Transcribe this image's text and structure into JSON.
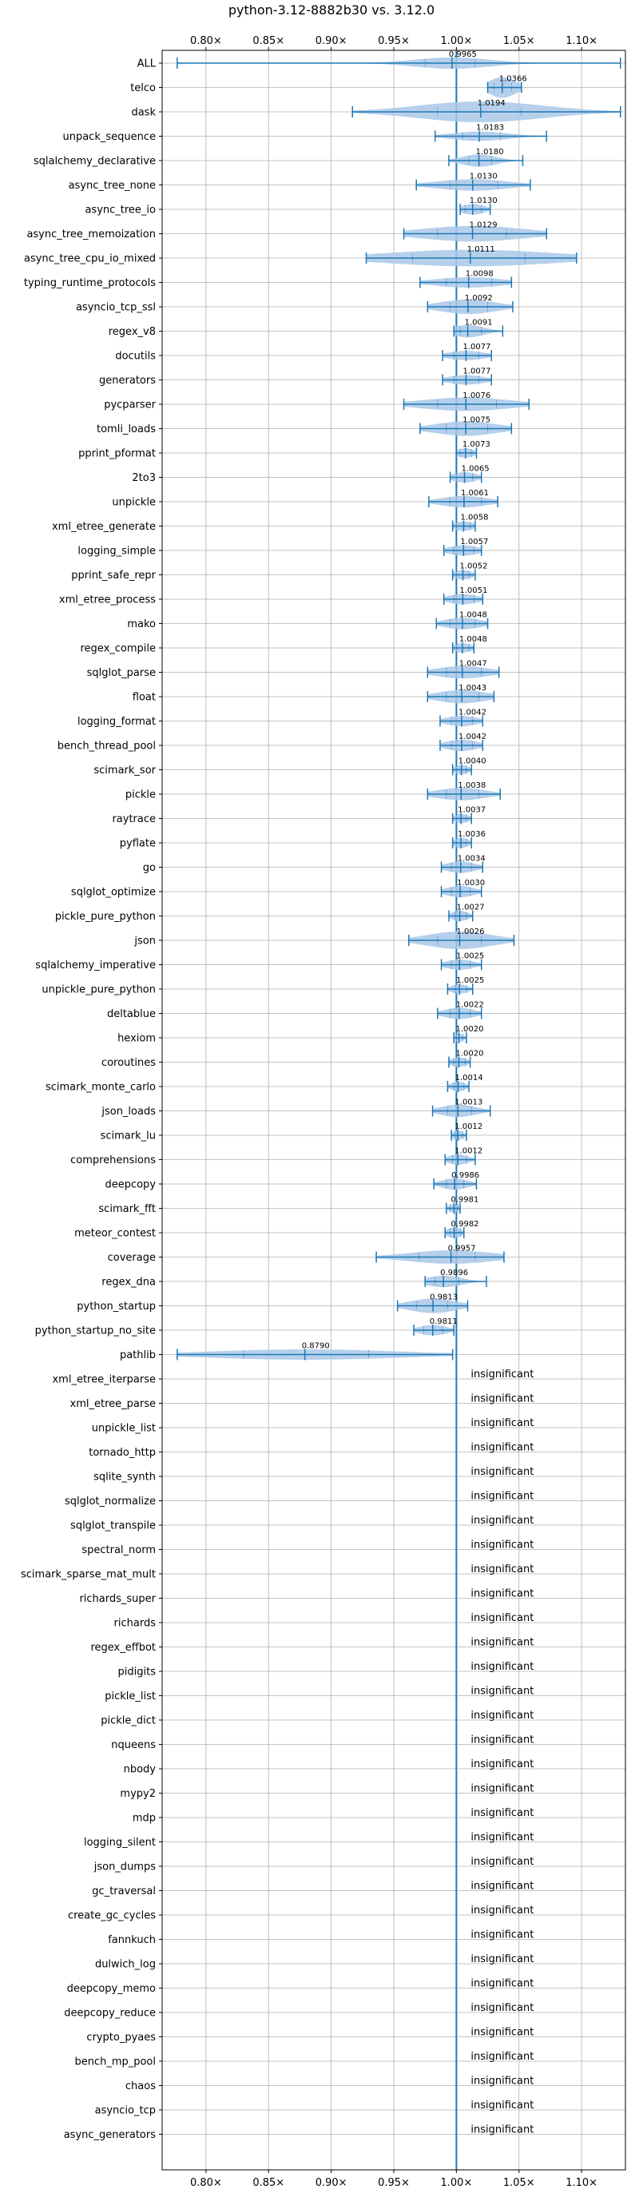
{
  "chart_data": {
    "type": "violin",
    "title": "python-3.12-8882b30 vs. 3.12.0",
    "xlim": [
      0.765,
      1.135
    ],
    "xticks": [
      0.8,
      0.85,
      0.9,
      0.95,
      1.0,
      1.05,
      1.1
    ],
    "xtick_labels": [
      "0.80×",
      "0.85×",
      "0.90×",
      "0.95×",
      "1.00×",
      "1.05×",
      "1.10×"
    ],
    "reference_line": 1.0,
    "grid": true,
    "color": "#1f77b4",
    "fill_color": "#a9c8e8",
    "insignificant_label": "insignificant",
    "significant": [
      {
        "name": "ALL",
        "label": "0.9965",
        "median": 0.9965,
        "min": 0.777,
        "max": 1.131,
        "q1": 0.975,
        "q3": 1.015,
        "width": 0.55
      },
      {
        "name": "telco",
        "label": "1.0366",
        "median": 1.0366,
        "min": 1.025,
        "max": 1.052,
        "q1": 1.03,
        "q3": 1.044,
        "width": 1.0
      },
      {
        "name": "dask",
        "label": "1.0194",
        "median": 1.0194,
        "min": 0.917,
        "max": 1.131,
        "q1": 0.985,
        "q3": 1.052,
        "width": 1.0
      },
      {
        "name": "unpack_sequence",
        "label": "1.0183",
        "median": 1.0183,
        "min": 0.983,
        "max": 1.072,
        "q1": 1.005,
        "q3": 1.035,
        "width": 0.45
      },
      {
        "name": "sqlalchemy_declarative",
        "label": "1.0180",
        "median": 1.018,
        "min": 0.994,
        "max": 1.053,
        "q1": 1.01,
        "q3": 1.028,
        "width": 0.6
      },
      {
        "name": "async_tree_none",
        "label": "1.0130",
        "median": 1.013,
        "min": 0.968,
        "max": 1.059,
        "q1": 0.995,
        "q3": 1.033,
        "width": 0.55
      },
      {
        "name": "async_tree_io",
        "label": "1.0130",
        "median": 1.013,
        "min": 1.003,
        "max": 1.027,
        "q1": 1.007,
        "q3": 1.02,
        "width": 0.5
      },
      {
        "name": "async_tree_memoization",
        "label": "1.0129",
        "median": 1.0129,
        "min": 0.958,
        "max": 1.072,
        "q1": 0.985,
        "q3": 1.04,
        "width": 0.75
      },
      {
        "name": "async_tree_cpu_io_mixed",
        "label": "1.0111",
        "median": 1.0111,
        "min": 0.928,
        "max": 1.096,
        "q1": 0.965,
        "q3": 1.055,
        "width": 0.8
      },
      {
        "name": "typing_runtime_protocols",
        "label": "1.0098",
        "median": 1.0098,
        "min": 0.971,
        "max": 1.044,
        "q1": 0.992,
        "q3": 1.028,
        "width": 0.5
      },
      {
        "name": "asyncio_tcp_ssl",
        "label": "1.0092",
        "median": 1.0092,
        "min": 0.977,
        "max": 1.045,
        "q1": 0.995,
        "q3": 1.025,
        "width": 0.7
      },
      {
        "name": "regex_v8",
        "label": "1.0091",
        "median": 1.0091,
        "min": 0.998,
        "max": 1.037,
        "q1": 1.003,
        "q3": 1.02,
        "width": 0.6
      },
      {
        "name": "docutils",
        "label": "1.0077",
        "median": 1.0077,
        "min": 0.989,
        "max": 1.028,
        "q1": 0.998,
        "q3": 1.018,
        "width": 0.45
      },
      {
        "name": "generators",
        "label": "1.0077",
        "median": 1.0077,
        "min": 0.989,
        "max": 1.028,
        "q1": 0.998,
        "q3": 1.018,
        "width": 0.45
      },
      {
        "name": "pycparser",
        "label": "1.0076",
        "median": 1.0076,
        "min": 0.958,
        "max": 1.058,
        "q1": 0.985,
        "q3": 1.032,
        "width": 0.65
      },
      {
        "name": "tomli_loads",
        "label": "1.0075",
        "median": 1.0075,
        "min": 0.971,
        "max": 1.044,
        "q1": 0.992,
        "q3": 1.025,
        "width": 0.7
      },
      {
        "name": "pprint_pformat",
        "label": "1.0073",
        "median": 1.0073,
        "min": 1.0,
        "max": 1.016,
        "q1": 1.003,
        "q3": 1.012,
        "width": 0.45
      },
      {
        "name": "2to3",
        "label": "1.0065",
        "median": 1.0065,
        "min": 0.995,
        "max": 1.02,
        "q1": 1.0,
        "q3": 1.013,
        "width": 0.5
      },
      {
        "name": "unpickle",
        "label": "1.0061",
        "median": 1.0061,
        "min": 0.978,
        "max": 1.033,
        "q1": 0.995,
        "q3": 1.02,
        "width": 0.55
      },
      {
        "name": "xml_etree_generate",
        "label": "1.0058",
        "median": 1.0058,
        "min": 0.997,
        "max": 1.015,
        "q1": 1.0,
        "q3": 1.011,
        "width": 0.45
      },
      {
        "name": "logging_simple",
        "label": "1.0057",
        "median": 1.0057,
        "min": 0.99,
        "max": 1.02,
        "q1": 0.998,
        "q3": 1.014,
        "width": 0.5
      },
      {
        "name": "pprint_safe_repr",
        "label": "1.0052",
        "median": 1.0052,
        "min": 0.997,
        "max": 1.015,
        "q1": 1.0,
        "q3": 1.01,
        "width": 0.45
      },
      {
        "name": "xml_etree_process",
        "label": "1.0051",
        "median": 1.0051,
        "min": 0.99,
        "max": 1.021,
        "q1": 0.998,
        "q3": 1.014,
        "width": 0.5
      },
      {
        "name": "mako",
        "label": "1.0048",
        "median": 1.0048,
        "min": 0.984,
        "max": 1.025,
        "q1": 0.995,
        "q3": 1.015,
        "width": 0.55
      },
      {
        "name": "regex_compile",
        "label": "1.0048",
        "median": 1.0048,
        "min": 0.997,
        "max": 1.014,
        "q1": 1.0,
        "q3": 1.01,
        "width": 0.45
      },
      {
        "name": "sqlglot_parse",
        "label": "1.0047",
        "median": 1.0047,
        "min": 0.977,
        "max": 1.034,
        "q1": 0.992,
        "q3": 1.02,
        "width": 0.6
      },
      {
        "name": "float",
        "label": "1.0043",
        "median": 1.0043,
        "min": 0.977,
        "max": 1.03,
        "q1": 0.992,
        "q3": 1.018,
        "width": 0.65
      },
      {
        "name": "logging_format",
        "label": "1.0042",
        "median": 1.0042,
        "min": 0.987,
        "max": 1.021,
        "q1": 0.996,
        "q3": 1.013,
        "width": 0.5
      },
      {
        "name": "bench_thread_pool",
        "label": "1.0042",
        "median": 1.0042,
        "min": 0.987,
        "max": 1.021,
        "q1": 0.996,
        "q3": 1.013,
        "width": 0.55
      },
      {
        "name": "scimark_sor",
        "label": "1.0040",
        "median": 1.004,
        "min": 0.997,
        "max": 1.012,
        "q1": 1.0,
        "q3": 1.008,
        "width": 0.45
      },
      {
        "name": "pickle",
        "label": "1.0038",
        "median": 1.0038,
        "min": 0.977,
        "max": 1.035,
        "q1": 0.992,
        "q3": 1.018,
        "width": 0.6
      },
      {
        "name": "raytrace",
        "label": "1.0037",
        "median": 1.0037,
        "min": 0.997,
        "max": 1.012,
        "q1": 1.0,
        "q3": 1.008,
        "width": 0.45
      },
      {
        "name": "pyflate",
        "label": "1.0036",
        "median": 1.0036,
        "min": 0.997,
        "max": 1.012,
        "q1": 1.0,
        "q3": 1.008,
        "width": 0.5
      },
      {
        "name": "go",
        "label": "1.0034",
        "median": 1.0034,
        "min": 0.988,
        "max": 1.021,
        "q1": 0.996,
        "q3": 1.012,
        "width": 0.55
      },
      {
        "name": "sqlglot_optimize",
        "label": "1.0030",
        "median": 1.003,
        "min": 0.988,
        "max": 1.02,
        "q1": 0.996,
        "q3": 1.011,
        "width": 0.55
      },
      {
        "name": "pickle_pure_python",
        "label": "1.0027",
        "median": 1.0027,
        "min": 0.994,
        "max": 1.013,
        "q1": 0.999,
        "q3": 1.008,
        "width": 0.5
      },
      {
        "name": "json",
        "label": "1.0026",
        "median": 1.0026,
        "min": 0.962,
        "max": 1.046,
        "q1": 0.985,
        "q3": 1.02,
        "width": 0.85
      },
      {
        "name": "sqlalchemy_imperative",
        "label": "1.0025",
        "median": 1.0025,
        "min": 0.988,
        "max": 1.02,
        "q1": 0.996,
        "q3": 1.011,
        "width": 0.5
      },
      {
        "name": "unpickle_pure_python",
        "label": "1.0025",
        "median": 1.0025,
        "min": 0.993,
        "max": 1.013,
        "q1": 0.999,
        "q3": 1.008,
        "width": 0.45
      },
      {
        "name": "deltablue",
        "label": "1.0022",
        "median": 1.0022,
        "min": 0.985,
        "max": 1.02,
        "q1": 0.995,
        "q3": 1.011,
        "width": 0.55
      },
      {
        "name": "hexiom",
        "label": "1.0020",
        "median": 1.002,
        "min": 0.998,
        "max": 1.008,
        "q1": 1.0,
        "q3": 1.005,
        "width": 0.4
      },
      {
        "name": "coroutines",
        "label": "1.0020",
        "median": 1.002,
        "min": 0.994,
        "max": 1.011,
        "q1": 0.998,
        "q3": 1.007,
        "width": 0.45
      },
      {
        "name": "scimark_monte_carlo",
        "label": "1.0014",
        "median": 1.0014,
        "min": 0.993,
        "max": 1.01,
        "q1": 0.998,
        "q3": 1.006,
        "width": 0.45
      },
      {
        "name": "json_loads",
        "label": "1.0013",
        "median": 1.0013,
        "min": 0.981,
        "max": 1.027,
        "q1": 0.993,
        "q3": 1.012,
        "width": 0.6
      },
      {
        "name": "scimark_lu",
        "label": "1.0012",
        "median": 1.0012,
        "min": 0.996,
        "max": 1.008,
        "q1": 0.999,
        "q3": 1.005,
        "width": 0.45
      },
      {
        "name": "comprehensions",
        "label": "1.0012",
        "median": 1.0012,
        "min": 0.991,
        "max": 1.015,
        "q1": 0.997,
        "q3": 1.008,
        "width": 0.5
      },
      {
        "name": "deepcopy",
        "label": "0.9986",
        "median": 0.9986,
        "min": 0.982,
        "max": 1.016,
        "q1": 0.992,
        "q3": 1.006,
        "width": 0.55
      },
      {
        "name": "scimark_fft",
        "label": "0.9981",
        "median": 0.9981,
        "min": 0.992,
        "max": 1.003,
        "q1": 0.995,
        "q3": 1.001,
        "width": 0.4
      },
      {
        "name": "meteor_contest",
        "label": "0.9982",
        "median": 0.9982,
        "min": 0.991,
        "max": 1.006,
        "q1": 0.995,
        "q3": 1.003,
        "width": 0.5
      },
      {
        "name": "coverage",
        "label": "0.9957",
        "median": 0.9957,
        "min": 0.936,
        "max": 1.038,
        "q1": 0.97,
        "q3": 1.015,
        "width": 0.65
      },
      {
        "name": "regex_dna",
        "label": "0.9896",
        "median": 0.9896,
        "min": 0.975,
        "max": 1.024,
        "q1": 0.983,
        "q3": 1.002,
        "width": 0.55
      },
      {
        "name": "python_startup",
        "label": "0.9813",
        "median": 0.9813,
        "min": 0.953,
        "max": 1.009,
        "q1": 0.968,
        "q3": 0.993,
        "width": 0.7
      },
      {
        "name": "python_startup_no_site",
        "label": "0.9811",
        "median": 0.9811,
        "min": 0.966,
        "max": 0.998,
        "q1": 0.974,
        "q3": 0.989,
        "width": 0.5
      },
      {
        "name": "pathlib",
        "label": "0.8790",
        "median": 0.879,
        "min": 0.777,
        "max": 0.997,
        "q1": 0.83,
        "q3": 0.93,
        "width": 0.5
      }
    ],
    "insignificant": [
      "xml_etree_iterparse",
      "xml_etree_parse",
      "unpickle_list",
      "tornado_http",
      "sqlite_synth",
      "sqlglot_normalize",
      "sqlglot_transpile",
      "spectral_norm",
      "scimark_sparse_mat_mult",
      "richards_super",
      "richards",
      "regex_effbot",
      "pidigits",
      "pickle_list",
      "pickle_dict",
      "nqueens",
      "nbody",
      "mypy2",
      "mdp",
      "logging_silent",
      "json_dumps",
      "gc_traversal",
      "create_gc_cycles",
      "fannkuch",
      "dulwich_log",
      "deepcopy_memo",
      "deepcopy_reduce",
      "crypto_pyaes",
      "bench_mp_pool",
      "chaos",
      "asyncio_tcp",
      "async_generators"
    ]
  }
}
